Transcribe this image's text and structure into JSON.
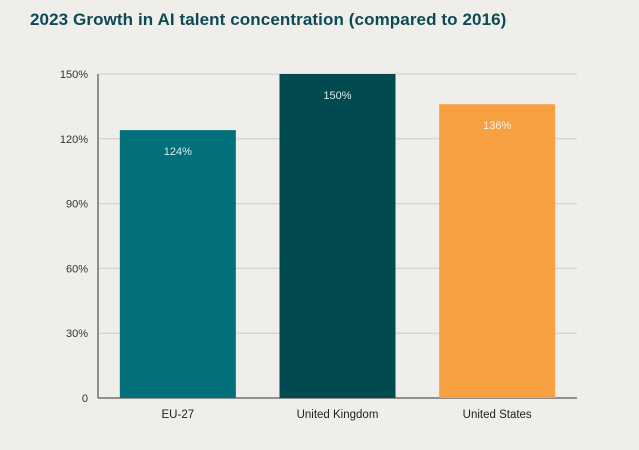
{
  "chart_data": {
    "type": "bar",
    "title": "2023 Growth in AI talent concentration (compared to 2016)",
    "categories": [
      "EU-27",
      "United Kingdom",
      "United States"
    ],
    "values": [
      124,
      150,
      136
    ],
    "data_labels": [
      "124%",
      "150%",
      "136%"
    ],
    "colors": [
      "#01707a",
      "#014a50",
      "#f6a042"
    ],
    "label_colors": [
      "#d9ecec",
      "#d9ecec",
      "#fdf3e6"
    ],
    "ylim": [
      0,
      150
    ],
    "yticks": [
      0,
      30,
      60,
      90,
      120,
      150
    ],
    "ytick_labels": [
      "0",
      "30%",
      "60%",
      "90%",
      "120%",
      "150%"
    ],
    "xlabel": "",
    "ylabel": "",
    "grid": true,
    "legend": "none"
  }
}
